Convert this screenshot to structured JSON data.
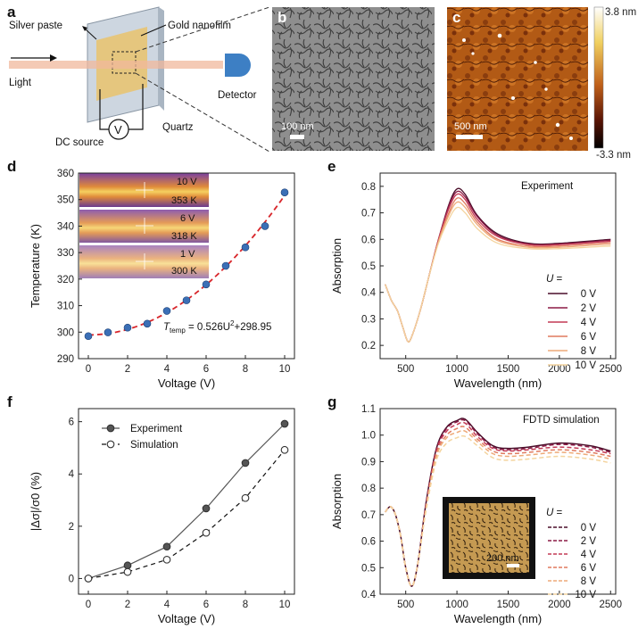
{
  "panels": {
    "a": "a",
    "b": "b",
    "c": "c",
    "d": "d",
    "e": "e",
    "f": "f",
    "g": "g"
  },
  "schematic": {
    "silver_paste": "Silver paste",
    "gold_nanofilm": "Gold nanofilm",
    "light": "Light",
    "detector": "Detector",
    "dc_source": "DC source",
    "voltmeter": "V",
    "quartz": "Quartz"
  },
  "sem": {
    "scalebar": "100 nm"
  },
  "afm": {
    "scalebar": "500 nm",
    "cbar_max": "3.8 nm",
    "cbar_min": "-3.3 nm"
  },
  "inset_g": {
    "scalebar": "200 nm"
  },
  "thermal": [
    {
      "voltage": "10 V",
      "temp": "353 K"
    },
    {
      "voltage": "6 V",
      "temp": "318 K"
    },
    {
      "voltage": "1 V",
      "temp": "300 K"
    }
  ],
  "fit": {
    "lhs": "T",
    "sub": "temp",
    "rhs": " = 0.526U",
    "sup": "2",
    "tail": "+298.95"
  },
  "legend_U": {
    "prefix": "U",
    "suffix": " ="
  },
  "colors": {
    "gradient": [
      "#4a0e2a",
      "#8c1a45",
      "#c33a55",
      "#e07a5f",
      "#eeaa78",
      "#f4d49e"
    ],
    "dots": "#3b6fb6",
    "fit": "#d8262b"
  },
  "chart_data": [
    {
      "id": "d",
      "type": "scatter",
      "xlabel": "Voltage (V)",
      "ylabel": "Temperature (K)",
      "xlim": [
        -0.5,
        10.5
      ],
      "ylim": [
        290,
        360
      ],
      "xticks": [
        0,
        2,
        4,
        6,
        8,
        10
      ],
      "yticks": [
        290,
        300,
        310,
        320,
        330,
        340,
        350,
        360
      ],
      "x": [
        0,
        1,
        2,
        3,
        4,
        5,
        6,
        7,
        8,
        9,
        10
      ],
      "y": [
        298.5,
        299.9,
        301.7,
        303.2,
        308.0,
        312.0,
        318.0,
        325.0,
        332.0,
        340.0,
        352.7
      ],
      "fit_formula": "T = 0.526U^2 + 298.95"
    },
    {
      "id": "e",
      "type": "line",
      "title": "Experiment",
      "xlabel": "Wavelength (nm)",
      "ylabel": "Absorption",
      "xlim": [
        250,
        2550
      ],
      "ylim": [
        0.15,
        0.85
      ],
      "xticks": [
        500,
        1000,
        1500,
        2000,
        2500
      ],
      "yticks": [
        0.2,
        0.3,
        0.4,
        0.5,
        0.6,
        0.7,
        0.8
      ],
      "legend_title": "U =",
      "series": [
        {
          "name": "0 V",
          "x": [
            300,
            360,
            420,
            470,
            520,
            560,
            640,
            720,
            820,
            920,
            1000,
            1080,
            1200,
            1400,
            1700,
            2000,
            2500
          ],
          "y": [
            0.43,
            0.37,
            0.33,
            0.27,
            0.215,
            0.235,
            0.33,
            0.45,
            0.6,
            0.73,
            0.79,
            0.77,
            0.69,
            0.62,
            0.585,
            0.585,
            0.6
          ]
        },
        {
          "name": "2 V",
          "x": [
            300,
            360,
            420,
            470,
            520,
            560,
            640,
            720,
            820,
            920,
            1000,
            1080,
            1200,
            1400,
            1700,
            2000,
            2500
          ],
          "y": [
            0.43,
            0.37,
            0.33,
            0.27,
            0.215,
            0.235,
            0.33,
            0.45,
            0.6,
            0.725,
            0.78,
            0.76,
            0.685,
            0.615,
            0.582,
            0.582,
            0.597
          ]
        },
        {
          "name": "4 V",
          "x": [
            300,
            360,
            420,
            470,
            520,
            560,
            640,
            720,
            820,
            920,
            1000,
            1080,
            1200,
            1400,
            1700,
            2000,
            2500
          ],
          "y": [
            0.43,
            0.37,
            0.33,
            0.27,
            0.215,
            0.235,
            0.33,
            0.45,
            0.6,
            0.715,
            0.77,
            0.75,
            0.675,
            0.61,
            0.58,
            0.58,
            0.593
          ]
        },
        {
          "name": "6 V",
          "x": [
            300,
            360,
            420,
            470,
            520,
            560,
            640,
            720,
            820,
            920,
            1000,
            1080,
            1200,
            1400,
            1700,
            2000,
            2500
          ],
          "y": [
            0.43,
            0.37,
            0.33,
            0.27,
            0.215,
            0.235,
            0.33,
            0.45,
            0.595,
            0.7,
            0.755,
            0.735,
            0.665,
            0.6,
            0.575,
            0.575,
            0.588
          ]
        },
        {
          "name": "8 V",
          "x": [
            300,
            360,
            420,
            470,
            520,
            560,
            640,
            720,
            820,
            920,
            1000,
            1080,
            1200,
            1400,
            1700,
            2000,
            2500
          ],
          "y": [
            0.43,
            0.37,
            0.33,
            0.27,
            0.215,
            0.235,
            0.33,
            0.45,
            0.59,
            0.69,
            0.74,
            0.72,
            0.655,
            0.595,
            0.57,
            0.57,
            0.582
          ]
        },
        {
          "name": "10 V",
          "x": [
            300,
            360,
            420,
            470,
            520,
            560,
            640,
            720,
            820,
            920,
            1000,
            1080,
            1200,
            1400,
            1700,
            2000,
            2500
          ],
          "y": [
            0.43,
            0.37,
            0.33,
            0.27,
            0.215,
            0.235,
            0.33,
            0.45,
            0.585,
            0.675,
            0.72,
            0.7,
            0.64,
            0.585,
            0.565,
            0.565,
            0.575
          ]
        }
      ]
    },
    {
      "id": "f",
      "type": "line",
      "xlabel": "Voltage (V)",
      "ylabel": "|Δσ|/σ0 (%)",
      "xlim": [
        -0.5,
        10.5
      ],
      "ylim": [
        -0.6,
        6.5
      ],
      "xticks": [
        0,
        2,
        4,
        6,
        8,
        10
      ],
      "yticks": [
        0,
        2,
        4,
        6
      ],
      "x": [
        0,
        2,
        4,
        6,
        8,
        10
      ],
      "series": [
        {
          "name": "Experiment",
          "values": [
            0.0,
            0.5,
            1.22,
            2.68,
            4.42,
            5.92
          ]
        },
        {
          "name": "Simulation",
          "values": [
            0.0,
            0.25,
            0.72,
            1.75,
            3.08,
            4.92
          ]
        }
      ]
    },
    {
      "id": "g",
      "type": "line",
      "title": "FDTD simulation",
      "xlabel": "Wavelength (nm)",
      "ylabel": "Absorption",
      "xlim": [
        250,
        2550
      ],
      "ylim": [
        0.4,
        1.1
      ],
      "xticks": [
        500,
        1000,
        1500,
        2000,
        2500
      ],
      "yticks": [
        0.4,
        0.5,
        0.6,
        0.7,
        0.8,
        0.9,
        1.0,
        1.1
      ],
      "legend_title": "U =",
      "series": [
        {
          "name": "0 V",
          "x": [
            300,
            350,
            400,
            450,
            500,
            560,
            620,
            700,
            800,
            900,
            1000,
            1080,
            1200,
            1350,
            1500,
            1700,
            2000,
            2300,
            2500
          ],
          "y": [
            0.71,
            0.73,
            0.7,
            0.62,
            0.5,
            0.43,
            0.52,
            0.75,
            0.95,
            1.03,
            1.055,
            1.06,
            1.01,
            0.96,
            0.95,
            0.955,
            0.97,
            0.96,
            0.94
          ]
        },
        {
          "name": "2 V",
          "x": [
            300,
            350,
            400,
            450,
            500,
            560,
            620,
            700,
            800,
            900,
            1000,
            1080,
            1200,
            1350,
            1500,
            1700,
            2000,
            2300,
            2500
          ],
          "y": [
            0.71,
            0.73,
            0.7,
            0.62,
            0.5,
            0.43,
            0.52,
            0.745,
            0.945,
            1.025,
            1.05,
            1.055,
            1.005,
            0.955,
            0.945,
            0.95,
            0.965,
            0.955,
            0.935
          ]
        },
        {
          "name": "4 V",
          "x": [
            300,
            350,
            400,
            450,
            500,
            560,
            620,
            700,
            800,
            900,
            1000,
            1080,
            1200,
            1350,
            1500,
            1700,
            2000,
            2300,
            2500
          ],
          "y": [
            0.71,
            0.73,
            0.7,
            0.62,
            0.5,
            0.43,
            0.52,
            0.74,
            0.94,
            1.015,
            1.04,
            1.045,
            0.995,
            0.95,
            0.94,
            0.945,
            0.955,
            0.945,
            0.93
          ]
        },
        {
          "name": "6 V",
          "x": [
            300,
            350,
            400,
            450,
            500,
            560,
            620,
            700,
            800,
            900,
            1000,
            1080,
            1200,
            1350,
            1500,
            1700,
            2000,
            2300,
            2500
          ],
          "y": [
            0.71,
            0.73,
            0.7,
            0.62,
            0.5,
            0.43,
            0.52,
            0.735,
            0.93,
            1.0,
            1.025,
            1.03,
            0.985,
            0.94,
            0.93,
            0.935,
            0.945,
            0.935,
            0.92
          ]
        },
        {
          "name": "8 V",
          "x": [
            300,
            350,
            400,
            450,
            500,
            560,
            620,
            700,
            800,
            900,
            1000,
            1080,
            1200,
            1350,
            1500,
            1700,
            2000,
            2300,
            2500
          ],
          "y": [
            0.71,
            0.73,
            0.7,
            0.62,
            0.5,
            0.43,
            0.52,
            0.73,
            0.92,
            0.99,
            1.01,
            1.015,
            0.975,
            0.93,
            0.92,
            0.925,
            0.935,
            0.925,
            0.91
          ]
        },
        {
          "name": "10 V",
          "x": [
            300,
            350,
            400,
            450,
            500,
            560,
            620,
            700,
            800,
            900,
            1000,
            1080,
            1200,
            1350,
            1500,
            1700,
            2000,
            2300,
            2500
          ],
          "y": [
            0.71,
            0.73,
            0.7,
            0.62,
            0.5,
            0.43,
            0.52,
            0.72,
            0.905,
            0.97,
            0.99,
            0.995,
            0.96,
            0.915,
            0.905,
            0.91,
            0.92,
            0.91,
            0.895
          ]
        }
      ]
    }
  ]
}
